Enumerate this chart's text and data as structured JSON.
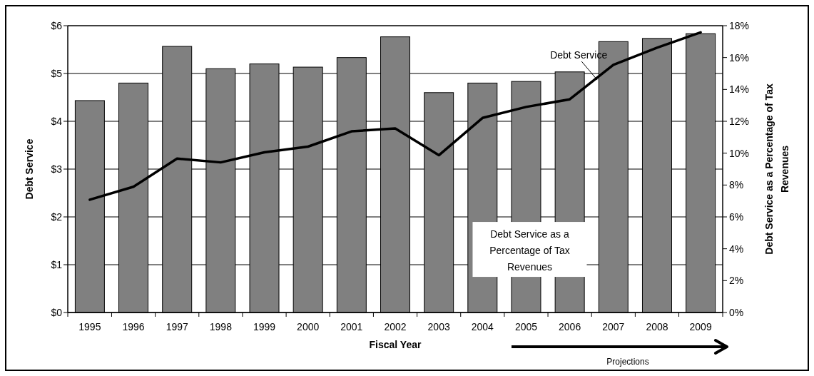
{
  "chart_data": {
    "type": "bar",
    "xlabel": "Fiscal Year",
    "ylabel": "Debt Service",
    "y2label": "Debt Service as a Percentage of Tax Revenues",
    "categories": [
      "1995",
      "1996",
      "1997",
      "1998",
      "1999",
      "2000",
      "2001",
      "2002",
      "2003",
      "2004",
      "2005",
      "2006",
      "2007",
      "2008",
      "2009"
    ],
    "series": [
      {
        "name": "Debt Service as a Percentage of Tax Revenues",
        "axis": "y2",
        "color": "#808080",
        "values": [
          13.3,
          14.4,
          16.7,
          15.3,
          15.6,
          15.4,
          16.0,
          17.3,
          13.8,
          14.4,
          14.5,
          15.1,
          17.0,
          17.2,
          17.5
        ]
      },
      {
        "name": "Debt Service",
        "type": "line",
        "axis": "y",
        "color": "#000000",
        "values": [
          2.36,
          2.63,
          3.22,
          3.14,
          3.35,
          3.47,
          3.79,
          3.85,
          3.29,
          4.07,
          4.3,
          4.46,
          5.18,
          5.54,
          5.86
        ]
      }
    ],
    "ylim": [
      0,
      6
    ],
    "yticks": [
      {
        "value": 0,
        "label": "$0"
      },
      {
        "value": 1,
        "label": "$1"
      },
      {
        "value": 2,
        "label": "$2"
      },
      {
        "value": 3,
        "label": "$3"
      },
      {
        "value": 4,
        "label": "$4"
      },
      {
        "value": 5,
        "label": "$5"
      },
      {
        "value": 6,
        "label": "$6"
      }
    ],
    "y2lim": [
      0,
      18
    ],
    "y2ticks": [
      {
        "value": 0,
        "label": "0%"
      },
      {
        "value": 2,
        "label": "2%"
      },
      {
        "value": 4,
        "label": "4%"
      },
      {
        "value": 6,
        "label": "6%"
      },
      {
        "value": 8,
        "label": "8%"
      },
      {
        "value": 10,
        "label": "10%"
      },
      {
        "value": 12,
        "label": "12%"
      },
      {
        "value": 14,
        "label": "14%"
      },
      {
        "value": 16,
        "label": "16%"
      },
      {
        "value": 18,
        "label": "18%"
      }
    ],
    "grid": "y",
    "legend": false,
    "annotations": [
      "Projections"
    ]
  }
}
